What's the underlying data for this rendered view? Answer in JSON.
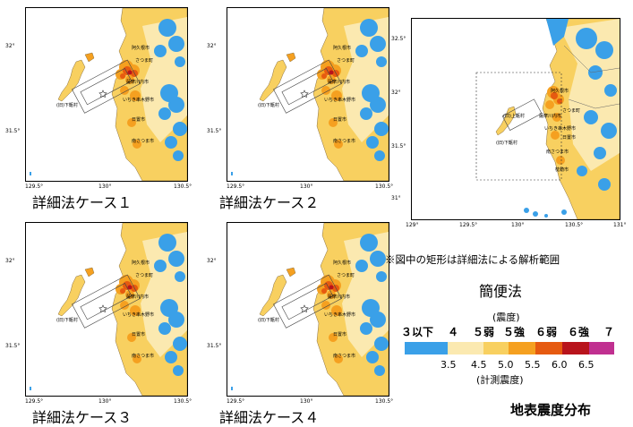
{
  "detailed_panels": [
    {
      "caption": "詳細法ケース１",
      "x_ticks": [
        "129.5°",
        "130°",
        "130.5°"
      ],
      "y_ticks": [
        "32°",
        "31.5°"
      ],
      "towns": [
        "阿久根市",
        "さつま町",
        "薩摩川内市",
        "いちき串木野市",
        "日置市",
        "南さつま市",
        "(旧)下甑村"
      ]
    },
    {
      "caption": "詳細法ケース２",
      "x_ticks": [
        "129.5°",
        "130°",
        "130.5°"
      ],
      "y_ticks": [
        "32°",
        "31.5°"
      ],
      "towns": [
        "阿久根市",
        "さつま町",
        "薩摩川内市",
        "いちき串木野市",
        "日置市",
        "南さつま市",
        "(旧)下甑村"
      ]
    },
    {
      "caption": "詳細法ケース３",
      "x_ticks": [
        "129.5°",
        "130°",
        "130.5°"
      ],
      "y_ticks": [
        "32°",
        "31.5°"
      ],
      "towns": [
        "阿久根市",
        "さつま町",
        "薩摩川内市",
        "いちき串木野市",
        "日置市",
        "南さつま市",
        "(旧)下甑村"
      ]
    },
    {
      "caption": "詳細法ケース４",
      "x_ticks": [
        "129.5°",
        "130°",
        "130.5°"
      ],
      "y_ticks": [
        "32°",
        "31.5°"
      ],
      "towns": [
        "阿久根市",
        "さつま町",
        "薩摩川内市",
        "いちき串木野市",
        "日置市",
        "南さつま市",
        "(旧)下甑村"
      ]
    }
  ],
  "simple_panel": {
    "caption": "簡便法",
    "x_ticks": [
      "129°",
      "129.5°",
      "130°",
      "130.5°",
      "131°"
    ],
    "y_ticks": [
      "32.5°",
      "32°",
      "31.5°",
      "31°"
    ],
    "towns": [
      "阿久根市",
      "さつま町",
      "薩摩川内市",
      "いちき串木野市",
      "日置市",
      "南さつま市",
      "(旧)下甑村",
      "(旧)上甑村",
      "枕崎市"
    ]
  },
  "note": "※図中の矩形は詳細法による解析範囲",
  "legend": {
    "title": "(震度)",
    "intensity_labels": [
      "３以下",
      "４",
      "５弱",
      "５強",
      "６弱",
      "６強",
      "７"
    ],
    "thresholds": [
      "3.5",
      "4.5",
      "5.0",
      "5.5",
      "6.0",
      "6.5"
    ],
    "colors": [
      "#3aa0e8",
      "#fbe9b0",
      "#f8d060",
      "#f5a020",
      "#e65a10",
      "#b8141c",
      "#c03090"
    ],
    "measured_label": "(計測震度)"
  },
  "figure_title": "地表震度分布"
}
